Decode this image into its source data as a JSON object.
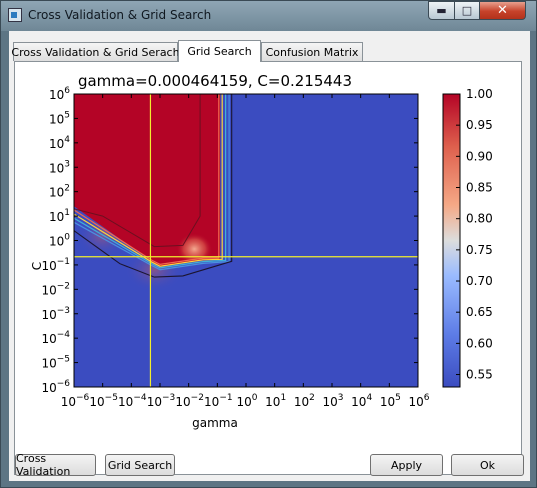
{
  "window": {
    "title": "Cross Validation & Grid Search"
  },
  "tabs": [
    {
      "label": "Cross Validation & Grid Serach"
    },
    {
      "label": "Grid Search"
    },
    {
      "label": "Confusion Matrix"
    }
  ],
  "buttons": {
    "cross_validation": "Cross Validation",
    "grid_search": "Grid Search",
    "apply": "Apply",
    "ok": "Ok"
  },
  "chart_data": {
    "type": "heatmap",
    "title": "gamma=0.000464159, C=0.215443",
    "xlabel": "gamma",
    "ylabel": "C",
    "x_scale": "log",
    "y_scale": "log",
    "xlim_exp": [
      -6,
      6
    ],
    "ylim_exp": [
      -6,
      6
    ],
    "x_ticks": [
      "10^-6",
      "10^-5",
      "10^-4",
      "10^-3",
      "10^-2",
      "10^-1",
      "10^0",
      "10^1",
      "10^2",
      "10^3",
      "10^4",
      "10^5",
      "10^6"
    ],
    "y_ticks": [
      "10^-6",
      "10^-5",
      "10^-4",
      "10^-3",
      "10^-2",
      "10^-1",
      "10^0",
      "10^1",
      "10^2",
      "10^3",
      "10^4",
      "10^5",
      "10^6"
    ],
    "selected": {
      "gamma": 0.000464159,
      "C": 0.215443
    },
    "colorbar": {
      "min": 0.53,
      "max": 1.0,
      "ticks": [
        "1.00",
        "0.95",
        "0.90",
        "0.85",
        "0.80",
        "0.75",
        "0.70",
        "0.65",
        "0.60",
        "0.55"
      ],
      "low_color": "#3b4cc0",
      "high_color": "#b40426"
    },
    "regions": [
      {
        "label": "high",
        "value": 1.0,
        "gamma_exp_range": [
          -6,
          -0.9
        ],
        "C_exp_min_at_low_gamma": 1.4,
        "C_exp_min_at_mid_gamma": -0.8
      },
      {
        "label": "low",
        "value": 0.53
      }
    ]
  }
}
